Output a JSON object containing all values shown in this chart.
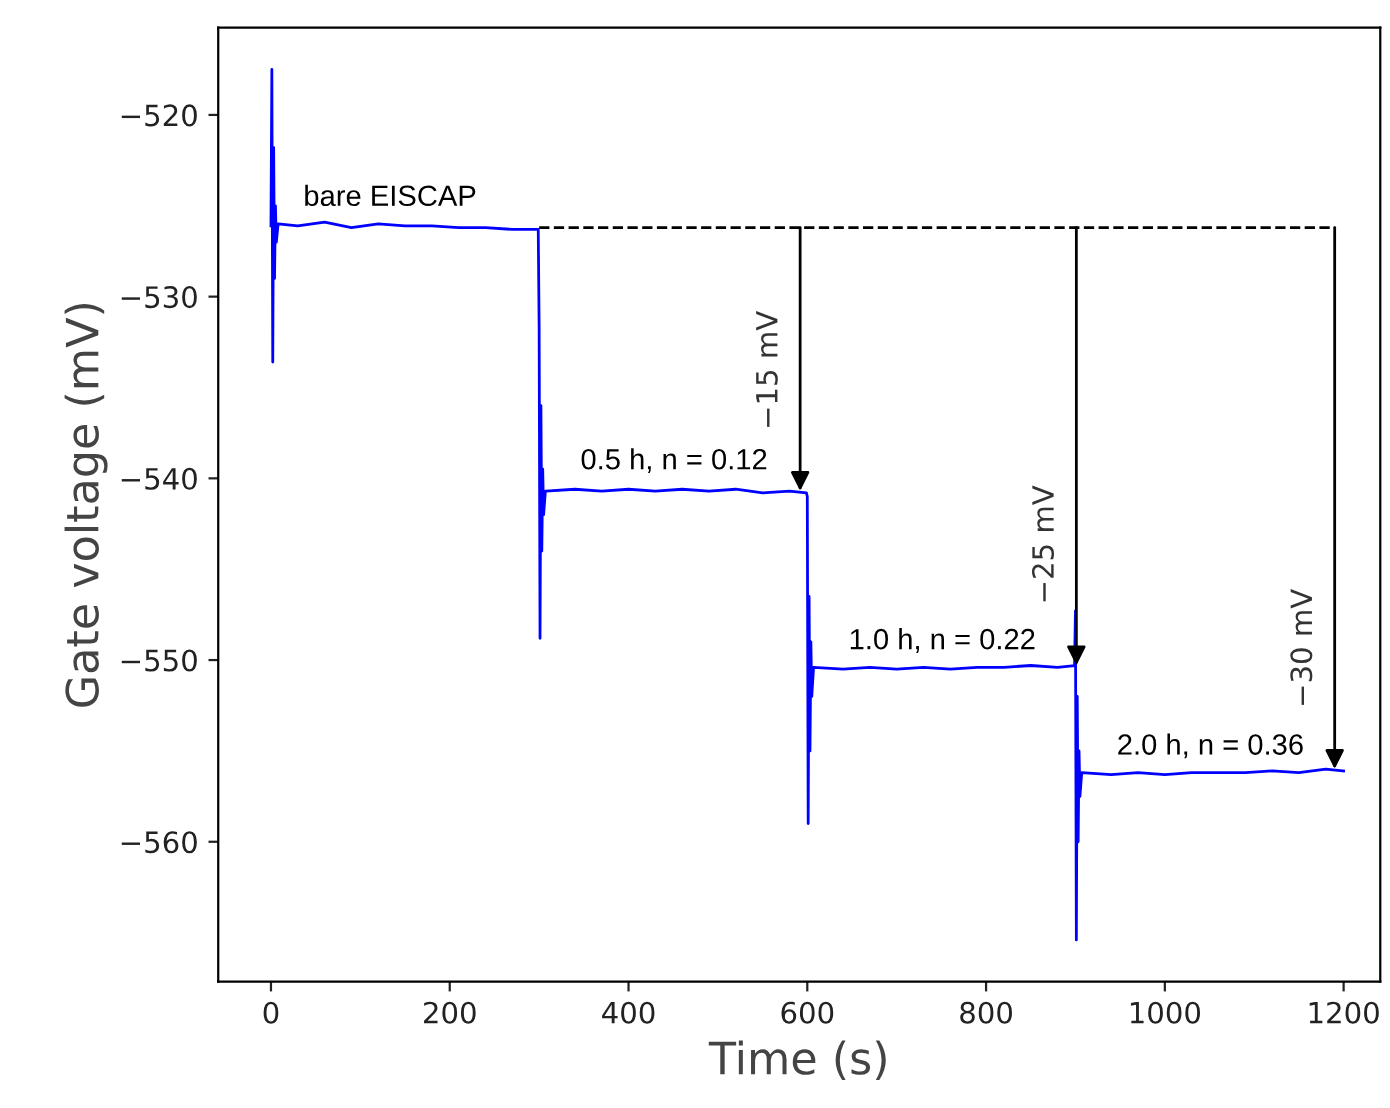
{
  "chart_data": {
    "type": "line",
    "xlabel": "Time (s)",
    "ylabel": "Gate voltage (mV)",
    "xlim": [
      -59,
      1241
    ],
    "ylim": [
      -567.7,
      -515.2
    ],
    "xticks": [
      0,
      200,
      400,
      600,
      800,
      1000,
      1200
    ],
    "yticks": [
      -560,
      -550,
      -540,
      -530,
      -520
    ],
    "grid": false,
    "legend": false,
    "series": [
      {
        "color": "#0000ff",
        "line_style": "solid",
        "x": [
          0,
          1,
          2,
          3,
          4,
          5,
          6,
          8,
          30,
          60,
          90,
          120,
          150,
          180,
          210,
          240,
          270,
          299,
          300,
          301,
          302,
          303,
          304,
          305,
          307,
          340,
          370,
          400,
          430,
          460,
          490,
          520,
          550,
          580,
          599,
          600,
          601,
          602,
          603,
          604,
          605,
          607,
          640,
          670,
          700,
          730,
          760,
          790,
          820,
          850,
          880,
          899,
          900,
          901,
          902,
          903,
          904,
          905,
          907,
          940,
          970,
          1000,
          1030,
          1060,
          1090,
          1120,
          1150,
          1180,
          1200
        ],
        "values": [
          -526.1,
          -517.5,
          -533.6,
          -521.8,
          -529.0,
          -525.0,
          -527.0,
          -526.0,
          -526.1,
          -525.9,
          -526.2,
          -526.0,
          -526.1,
          -526.1,
          -526.2,
          -526.2,
          -526.3,
          -526.3,
          -531.6,
          -548.8,
          -536.0,
          -544.0,
          -539.5,
          -542.0,
          -540.7,
          -540.6,
          -540.7,
          -540.6,
          -540.7,
          -540.6,
          -540.7,
          -540.6,
          -540.8,
          -540.7,
          -540.8,
          -541.0,
          -559.0,
          -546.5,
          -555.0,
          -549.0,
          -552.0,
          -550.4,
          -550.5,
          -550.4,
          -550.5,
          -550.4,
          -550.5,
          -550.4,
          -550.4,
          -550.3,
          -550.4,
          -550.3,
          -547.3,
          -565.4,
          -552.0,
          -560.0,
          -555.0,
          -557.5,
          -556.2,
          -556.3,
          -556.2,
          -556.3,
          -556.2,
          -556.2,
          -556.2,
          -556.1,
          -556.2,
          -556.0,
          -556.1
        ]
      },
      {
        "color": "#000000",
        "line_style": "dashed",
        "x": [
          300,
          1190
        ],
        "values": [
          -526.2,
          -526.2
        ]
      }
    ],
    "annotations": [
      {
        "text": "bare EISCAP",
        "x": 30,
        "y": -526.1
      },
      {
        "text": "0.5 h, n = 0.12",
        "x": 340,
        "y": -540.6
      },
      {
        "text": "1.0 h, n = 0.22",
        "x": 640,
        "y": -550.5
      },
      {
        "text": "2.0 h, n = 0.36",
        "x": 940,
        "y": -556.3
      },
      {
        "text": "−15 mV",
        "x": 592,
        "y": -540.7
      },
      {
        "text": "−25 mV",
        "x": 901,
        "y": -550.3
      },
      {
        "text": "−30 mV",
        "x": 1190,
        "y": -556.0
      }
    ]
  }
}
